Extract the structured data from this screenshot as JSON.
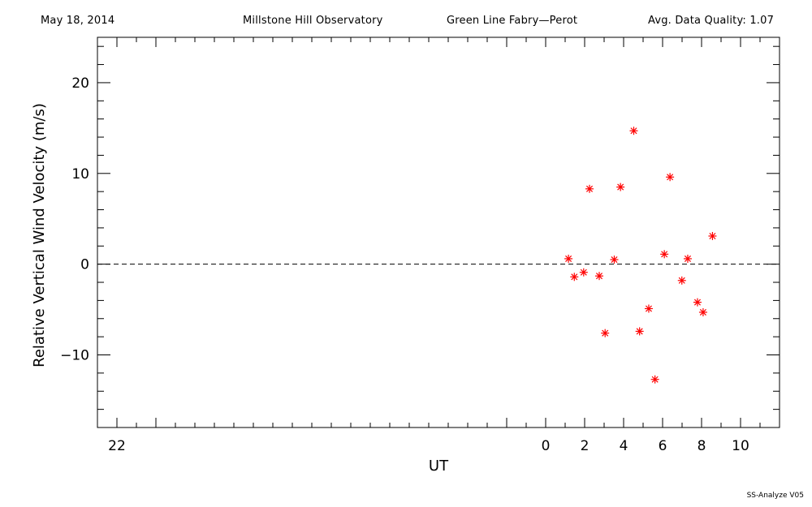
{
  "header": {
    "date": "May 18, 2014",
    "observatory": "Millstone Hill Observatory",
    "instrument": "Green Line Fabry—Perot",
    "quality": "Avg. Data Quality: 1.07"
  },
  "footer": "SS-Analyze V05",
  "colors": {
    "marker": "#ff0000",
    "axis": "#000000"
  },
  "chart_data": {
    "type": "scatter",
    "xlabel": "UT",
    "ylabel": "Relative Vertical Wind Velocity (m/s)",
    "xlim": [
      -23,
      12
    ],
    "ylim": [
      -18,
      25
    ],
    "x_ticks": [
      {
        "value": -22,
        "label": "22"
      },
      {
        "value": 0,
        "label": "0"
      },
      {
        "value": 2,
        "label": "2"
      },
      {
        "value": 4,
        "label": "4"
      },
      {
        "value": 6,
        "label": "6"
      },
      {
        "value": 8,
        "label": "8"
      },
      {
        "value": 10,
        "label": "10"
      }
    ],
    "y_ticks": [
      {
        "value": 20,
        "label": "20"
      },
      {
        "value": 10,
        "label": "10"
      },
      {
        "value": 0,
        "label": "0"
      },
      {
        "value": -10,
        "label": "−10"
      }
    ],
    "reference_line": {
      "y": 0,
      "style": "dashed"
    },
    "marker": "asterisk",
    "points": [
      {
        "x": 1.17,
        "y": 0.6
      },
      {
        "x": 1.47,
        "y": -1.4
      },
      {
        "x": 1.95,
        "y": -0.9
      },
      {
        "x": 2.25,
        "y": 8.3
      },
      {
        "x": 2.75,
        "y": -1.3
      },
      {
        "x": 3.05,
        "y": -7.6
      },
      {
        "x": 3.52,
        "y": 0.5
      },
      {
        "x": 3.84,
        "y": 8.5
      },
      {
        "x": 4.52,
        "y": 14.7
      },
      {
        "x": 4.82,
        "y": -7.4
      },
      {
        "x": 5.29,
        "y": -4.9
      },
      {
        "x": 5.61,
        "y": -12.7
      },
      {
        "x": 6.09,
        "y": 1.1
      },
      {
        "x": 6.38,
        "y": 9.6
      },
      {
        "x": 6.99,
        "y": -1.8
      },
      {
        "x": 7.29,
        "y": 0.6
      },
      {
        "x": 7.79,
        "y": -4.2
      },
      {
        "x": 8.08,
        "y": -5.3
      },
      {
        "x": 8.56,
        "y": 3.1
      }
    ]
  }
}
